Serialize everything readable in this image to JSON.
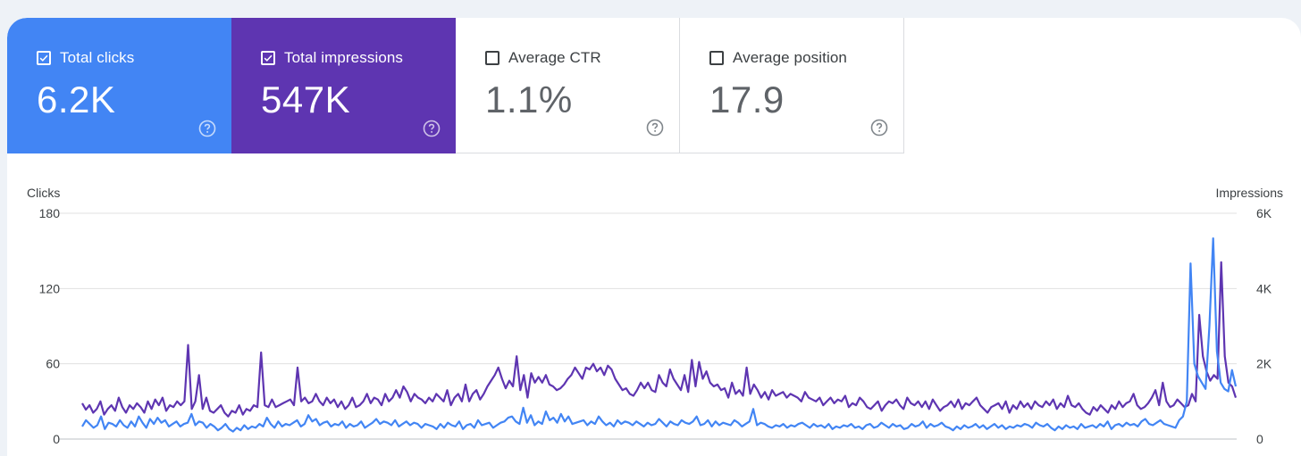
{
  "metrics": [
    {
      "label": "Total clicks",
      "value": "6.2K",
      "checked": true
    },
    {
      "label": "Total impressions",
      "value": "547K",
      "checked": true
    },
    {
      "label": "Average CTR",
      "value": "1.1%",
      "checked": false
    },
    {
      "label": "Average position",
      "value": "17.9",
      "checked": false
    }
  ],
  "colors": {
    "clicks": "#4285f4",
    "impressions": "#5e35b1"
  },
  "icons": {
    "checkbox": "checkbox-icon",
    "help": "help-circle-icon"
  },
  "chart_data": {
    "type": "line",
    "left_axis": {
      "title": "Clicks",
      "ticks": [
        "0",
        "60",
        "120",
        "180"
      ],
      "range": [
        0,
        180
      ]
    },
    "right_axis": {
      "title": "Impressions",
      "ticks": [
        "0",
        "2K",
        "4K",
        "6K"
      ],
      "range": [
        0,
        6000
      ]
    },
    "grid": true,
    "series": [
      {
        "axis": "right",
        "values": [
          950,
          780,
          900,
          700,
          800,
          1000,
          650,
          800,
          900,
          750,
          1100,
          850,
          700,
          900,
          800,
          950,
          850,
          700,
          1000,
          800,
          1050,
          900,
          1100,
          750,
          900,
          850,
          1000,
          900,
          1000,
          2500,
          800,
          1000,
          1700,
          800,
          1100,
          750,
          700,
          800,
          900,
          700,
          600,
          750,
          700,
          900,
          650,
          800,
          750,
          900,
          850,
          2300,
          900,
          850,
          1050,
          850,
          900,
          950,
          1000,
          1050,
          900,
          1900,
          1000,
          1100,
          950,
          1000,
          1200,
          1000,
          900,
          1100,
          950,
          1050,
          850,
          1000,
          800,
          900,
          1100,
          850,
          900,
          1000,
          1200,
          950,
          1100,
          1050,
          900,
          1200,
          1000,
          1100,
          1300,
          1100,
          1400,
          1250,
          1000,
          1200,
          1100,
          1050,
          950,
          1100,
          1000,
          1200,
          1100,
          1000,
          1300,
          900,
          1100,
          1200,
          1000,
          1450,
          1000,
          1200,
          1300,
          1050,
          1200,
          1400,
          1550,
          1700,
          1900,
          1600,
          1350,
          1550,
          1400,
          2200,
          1300,
          1700,
          1100,
          1750,
          1500,
          1650,
          1500,
          1700,
          1450,
          1400,
          1300,
          1350,
          1450,
          1600,
          1700,
          1900,
          1750,
          1600,
          1900,
          1850,
          2000,
          1800,
          1900,
          1700,
          1950,
          1850,
          1600,
          1450,
          1300,
          1350,
          1200,
          1150,
          1300,
          1500,
          1350,
          1500,
          1300,
          1250,
          1700,
          1500,
          1400,
          1850,
          1600,
          1450,
          1300,
          1700,
          1250,
          2100,
          1400,
          2050,
          1600,
          1800,
          1500,
          1400,
          1450,
          1300,
          1350,
          1100,
          1500,
          1200,
          1300,
          1150,
          1900,
          1200,
          1450,
          1300,
          1100,
          1250,
          1050,
          1300,
          1150,
          1200,
          1250,
          1100,
          1200,
          1150,
          1100,
          1000,
          1250,
          1100,
          1050,
          1000,
          1100,
          900,
          1000,
          1100,
          950,
          1050,
          1000,
          1150,
          850,
          950,
          900,
          1100,
          1000,
          850,
          800,
          900,
          1000,
          750,
          900,
          1000,
          950,
          1050,
          900,
          800,
          1100,
          950,
          900,
          1000,
          850,
          1000,
          800,
          1050,
          900,
          750,
          850,
          900,
          1000,
          850,
          1050,
          800,
          950,
          900,
          1000,
          1100,
          900,
          800,
          700,
          850,
          900,
          950,
          800,
          1000,
          700,
          900,
          800,
          1000,
          850,
          950,
          800,
          1000,
          900,
          850,
          1000,
          900,
          1050,
          800,
          950,
          850,
          1150,
          900,
          850,
          950,
          800,
          700,
          650,
          850,
          750,
          900,
          800,
          700,
          900,
          800,
          1000,
          850,
          950,
          1000,
          1200,
          900,
          800,
          850,
          950,
          1100,
          1300,
          900,
          1500,
          1000,
          850,
          900,
          1050,
          950,
          850,
          900,
          1200,
          1000,
          3300,
          2200,
          1800,
          1550,
          1700,
          1600,
          4700,
          2200,
          1500,
          1400,
          1100
        ]
      },
      {
        "axis": "left",
        "values": [
          10,
          15,
          12,
          9,
          11,
          18,
          8,
          13,
          12,
          10,
          15,
          11,
          9,
          14,
          10,
          18,
          13,
          9,
          16,
          12,
          17,
          13,
          15,
          10,
          12,
          14,
          10,
          12,
          13,
          20,
          11,
          14,
          13,
          9,
          12,
          10,
          7,
          9,
          12,
          8,
          6,
          9,
          7,
          11,
          8,
          10,
          9,
          12,
          10,
          17,
          12,
          9,
          14,
          10,
          12,
          11,
          13,
          15,
          10,
          12,
          19,
          14,
          16,
          11,
          13,
          14,
          10,
          12,
          11,
          14,
          9,
          12,
          10,
          11,
          14,
          9,
          11,
          13,
          16,
          12,
          14,
          13,
          11,
          15,
          10,
          12,
          14,
          11,
          13,
          12,
          9,
          12,
          11,
          10,
          8,
          12,
          9,
          13,
          11,
          10,
          14,
          8,
          11,
          12,
          9,
          15,
          11,
          12,
          13,
          9,
          11,
          13,
          14,
          17,
          18,
          14,
          12,
          25,
          13,
          19,
          11,
          14,
          12,
          22,
          15,
          17,
          13,
          20,
          14,
          18,
          12,
          13,
          14,
          15,
          11,
          14,
          12,
          18,
          14,
          11,
          13,
          10,
          15,
          12,
          14,
          13,
          11,
          14,
          12,
          10,
          13,
          11,
          12,
          16,
          13,
          10,
          14,
          12,
          11,
          15,
          13,
          12,
          14,
          18,
          11,
          12,
          15,
          10,
          14,
          11,
          13,
          12,
          11,
          15,
          13,
          10,
          12,
          14,
          24,
          11,
          13,
          12,
          10,
          9,
          11,
          10,
          12,
          9,
          11,
          10,
          12,
          13,
          11,
          9,
          12,
          10,
          11,
          9,
          12,
          8,
          10,
          9,
          11,
          10,
          12,
          9,
          10,
          8,
          11,
          12,
          9,
          10,
          13,
          11,
          9,
          12,
          10,
          11,
          8,
          9,
          12,
          10,
          11,
          14,
          9,
          12,
          10,
          11,
          13,
          10,
          9,
          7,
          10,
          8,
          11,
          9,
          10,
          12,
          9,
          11,
          8,
          10,
          12,
          9,
          11,
          8,
          10,
          9,
          11,
          10,
          12,
          11,
          9,
          13,
          11,
          10,
          12,
          9,
          7,
          10,
          8,
          11,
          9,
          10,
          8,
          12,
          9,
          10,
          11,
          9,
          12,
          10,
          14,
          8,
          11,
          12,
          10,
          13,
          11,
          12,
          10,
          14,
          16,
          12,
          11,
          13,
          15,
          12,
          11,
          10,
          9,
          15,
          18,
          30,
          140,
          60,
          50,
          45,
          40,
          90,
          160,
          70,
          45,
          40,
          38,
          55,
          42
        ]
      }
    ]
  }
}
